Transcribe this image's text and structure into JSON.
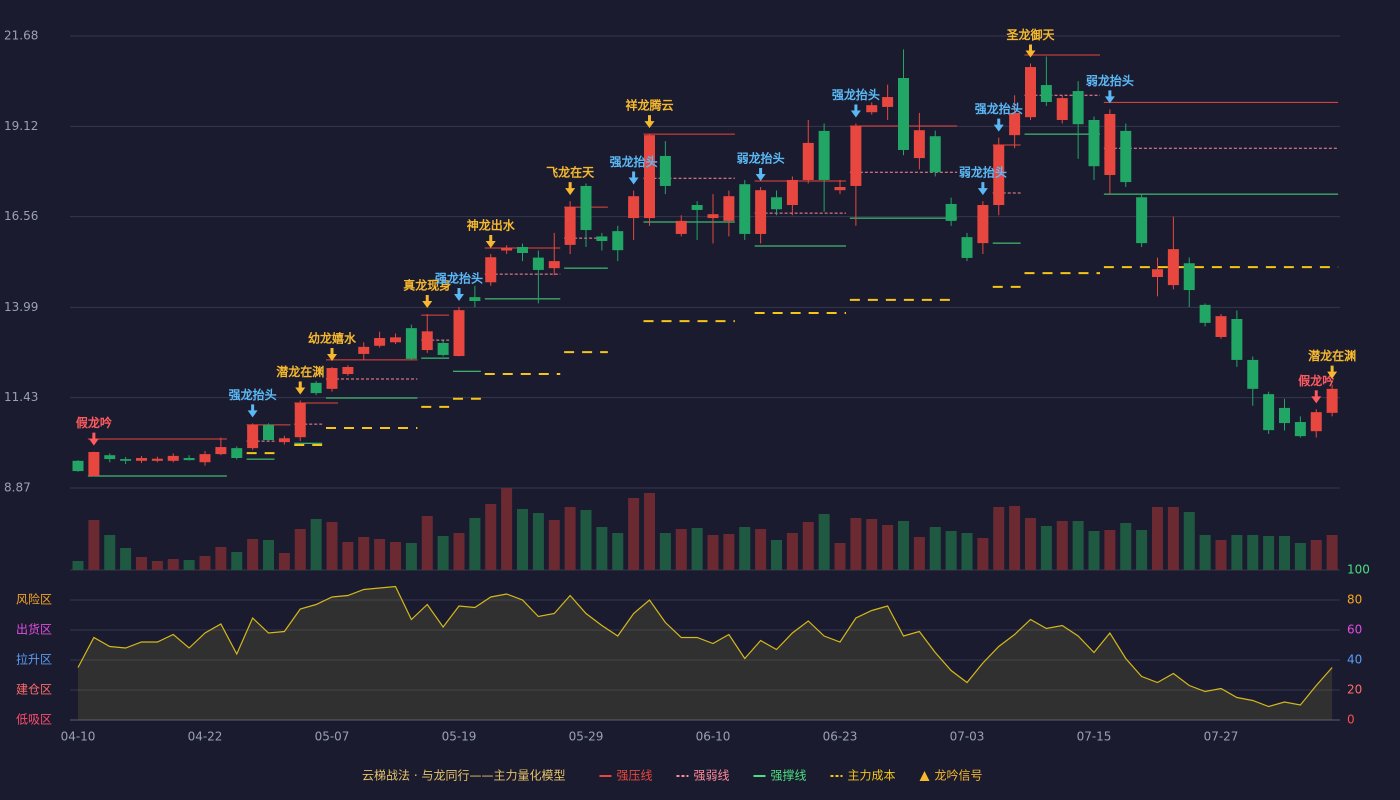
{
  "chart_data": [
    {
      "type": "candlestick",
      "categories": [
        "04-10",
        null,
        null,
        null,
        null,
        null,
        null,
        null,
        "04-22",
        null,
        null,
        null,
        null,
        null,
        null,
        null,
        "05-07",
        null,
        null,
        null,
        null,
        null,
        null,
        null,
        "05-19",
        null,
        null,
        null,
        null,
        null,
        null,
        null,
        "05-29",
        null,
        null,
        null,
        null,
        null,
        null,
        null,
        "06-10",
        null,
        null,
        null,
        null,
        null,
        null,
        null,
        "06-23",
        null,
        null,
        null,
        null,
        null,
        null,
        null,
        "07-03",
        null,
        null,
        null,
        null,
        null,
        null,
        null,
        "07-15",
        null,
        null,
        null,
        null,
        null,
        null,
        null,
        "07-27",
        null,
        null,
        null,
        null,
        null,
        null,
        null
      ],
      "open": [
        9.64,
        9.21,
        9.8,
        9.69,
        9.64,
        9.64,
        9.64,
        9.72,
        9.6,
        9.83,
        10.0,
        10.0,
        10.66,
        10.17,
        10.31,
        11.85,
        11.68,
        12.1,
        12.67,
        12.9,
        13.0,
        13.4,
        12.78,
        12.98,
        12.61,
        14.28,
        14.7,
        15.6,
        15.7,
        15.4,
        15.1,
        15.76,
        17.43,
        16.0,
        16.15,
        16.52,
        16.52,
        18.28,
        16.07,
        16.89,
        16.52,
        16.44,
        17.48,
        16.07,
        17.11,
        16.89,
        17.6,
        18.99,
        17.31,
        17.43,
        19.52,
        19.67,
        20.49,
        18.22,
        18.84,
        16.92,
        15.98,
        15.81,
        16.89,
        18.87,
        19.38,
        20.29,
        19.3,
        20.12,
        19.3,
        17.74,
        18.99,
        17.11,
        14.85,
        14.62,
        15.24,
        14.06,
        13.15,
        13.66,
        12.5,
        11.53,
        11.14,
        10.74,
        10.48,
        11.0
      ],
      "high": [
        9.66,
        9.9,
        9.85,
        9.75,
        9.78,
        9.76,
        9.85,
        9.8,
        9.92,
        10.3,
        10.05,
        10.7,
        10.7,
        10.35,
        11.35,
        11.9,
        12.3,
        12.35,
        13.0,
        13.3,
        13.25,
        13.5,
        13.8,
        13.05,
        14.0,
        14.6,
        15.5,
        15.75,
        15.8,
        15.6,
        16.1,
        17.0,
        17.5,
        16.1,
        16.3,
        17.3,
        18.9,
        18.7,
        16.6,
        17.0,
        17.2,
        17.3,
        17.6,
        17.4,
        17.3,
        17.7,
        19.3,
        19.2,
        17.6,
        19.2,
        19.8,
        20.3,
        21.3,
        19.5,
        19.0,
        17.1,
        16.1,
        17.0,
        18.8,
        20.0,
        20.9,
        21.1,
        20.0,
        20.4,
        19.4,
        19.6,
        19.2,
        17.2,
        15.4,
        16.56,
        15.4,
        14.1,
        13.8,
        13.9,
        12.6,
        11.6,
        11.4,
        10.9,
        11.1,
        11.8
      ],
      "low": [
        9.33,
        9.2,
        9.6,
        9.55,
        9.58,
        9.6,
        9.6,
        9.65,
        9.5,
        9.8,
        9.68,
        9.95,
        10.2,
        10.1,
        10.2,
        11.5,
        11.6,
        12.05,
        12.5,
        12.85,
        12.95,
        12.5,
        12.7,
        12.6,
        12.6,
        14.0,
        14.6,
        15.5,
        15.3,
        14.1,
        14.9,
        15.5,
        15.7,
        15.6,
        15.3,
        15.9,
        16.3,
        17.2,
        16.0,
        15.9,
        15.8,
        16.0,
        15.9,
        15.8,
        16.6,
        16.6,
        17.5,
        16.7,
        17.2,
        16.3,
        19.45,
        19.3,
        18.3,
        17.9,
        17.7,
        16.3,
        15.3,
        15.5,
        16.6,
        18.5,
        19.3,
        19.7,
        19.2,
        18.2,
        17.6,
        17.2,
        17.4,
        15.7,
        14.3,
        14.5,
        14.0,
        13.45,
        13.1,
        12.3,
        11.2,
        10.4,
        10.5,
        10.3,
        10.3,
        10.9
      ],
      "close": [
        9.35,
        9.89,
        9.69,
        9.64,
        9.72,
        9.7,
        9.78,
        9.66,
        9.83,
        10.03,
        9.72,
        10.66,
        10.23,
        10.28,
        11.28,
        11.56,
        12.27,
        12.3,
        12.87,
        13.12,
        13.14,
        12.53,
        13.31,
        12.64,
        13.91,
        14.17,
        15.41,
        15.67,
        15.53,
        15.05,
        15.3,
        16.83,
        16.18,
        15.87,
        15.61,
        17.14,
        18.87,
        17.43,
        16.44,
        16.75,
        16.63,
        17.14,
        16.07,
        17.31,
        16.77,
        17.6,
        18.65,
        17.6,
        17.4,
        19.13,
        19.72,
        19.95,
        18.45,
        19.01,
        17.82,
        16.44,
        15.39,
        16.89,
        18.59,
        19.5,
        20.8,
        19.81,
        19.92,
        19.18,
        17.99,
        19.47,
        17.54,
        15.81,
        15.07,
        15.64,
        14.48,
        13.55,
        13.74,
        12.5,
        11.68,
        10.51,
        10.71,
        10.34,
        11.02,
        11.68
      ],
      "up_color": "#e8473f",
      "down_color": "#21a665",
      "ylim": [
        8.87,
        21.68
      ],
      "yticks": [
        8.87,
        11.43,
        13.99,
        16.56,
        19.12,
        21.68
      ],
      "grid": true,
      "legend_title": "云梯战法 · 与龙同行——主力量化模型",
      "lines": [
        {
          "name": "强压线",
          "color": "#e8473f",
          "style": "solid",
          "segments": [
            {
              "from": 1,
              "to": 9,
              "value": 10.26
            },
            {
              "from": 11,
              "to": 13,
              "value": 10.66
            },
            {
              "from": 14,
              "to": 16,
              "value": 11.28
            },
            {
              "from": 16,
              "to": 21,
              "value": 12.5
            },
            {
              "from": 22,
              "to": 23,
              "value": 13.77
            },
            {
              "from": 26,
              "to": 30,
              "value": 15.67
            },
            {
              "from": 31,
              "to": 33,
              "value": 16.83
            },
            {
              "from": 36,
              "to": 41,
              "value": 18.9
            },
            {
              "from": 43,
              "to": 48,
              "value": 17.57
            },
            {
              "from": 49,
              "to": 55,
              "value": 19.13
            },
            {
              "from": 58,
              "to": 59,
              "value": 18.59
            },
            {
              "from": 60,
              "to": 64,
              "value": 21.14
            },
            {
              "from": 65,
              "to": 79,
              "value": 19.8
            }
          ]
        },
        {
          "name": "强弱线",
          "color": "#ff8a9a",
          "style": "dotted",
          "segments": [
            {
              "from": 11,
              "to": 12,
              "value": 10.2
            },
            {
              "from": 14,
              "to": 15,
              "value": 10.68
            },
            {
              "from": 16,
              "to": 21,
              "value": 11.96
            },
            {
              "from": 22,
              "to": 23,
              "value": 13.06
            },
            {
              "from": 26,
              "to": 30,
              "value": 14.93
            },
            {
              "from": 31,
              "to": 33,
              "value": 15.95
            },
            {
              "from": 36,
              "to": 41,
              "value": 17.65
            },
            {
              "from": 43,
              "to": 48,
              "value": 16.66
            },
            {
              "from": 49,
              "to": 55,
              "value": 17.82
            },
            {
              "from": 58,
              "to": 59,
              "value": 17.23
            },
            {
              "from": 60,
              "to": 64,
              "value": 20.0
            },
            {
              "from": 65,
              "to": 79,
              "value": 18.5
            }
          ]
        },
        {
          "name": "强撑线",
          "color": "#4ade80",
          "style": "solid",
          "segments": [
            {
              "from": 1,
              "to": 9,
              "value": 9.21
            },
            {
              "from": 11,
              "to": 12,
              "value": 9.69
            },
            {
              "from": 14,
              "to": 15,
              "value": 10.14
            },
            {
              "from": 16,
              "to": 21,
              "value": 11.42
            },
            {
              "from": 22,
              "to": 23,
              "value": 12.55
            },
            {
              "from": 24,
              "to": 25,
              "value": 12.18
            },
            {
              "from": 26,
              "to": 30,
              "value": 14.23
            },
            {
              "from": 31,
              "to": 33,
              "value": 15.1
            },
            {
              "from": 36,
              "to": 41,
              "value": 16.41
            },
            {
              "from": 43,
              "to": 48,
              "value": 15.73
            },
            {
              "from": 49,
              "to": 55,
              "value": 16.52
            },
            {
              "from": 58,
              "to": 59,
              "value": 15.81
            },
            {
              "from": 60,
              "to": 64,
              "value": 18.9
            },
            {
              "from": 65,
              "to": 79,
              "value": 17.2
            }
          ]
        },
        {
          "name": "主力成本",
          "color": "#f5c518",
          "style": "dashed",
          "segments": [
            {
              "from": 11,
              "to": 12,
              "value": 9.86
            },
            {
              "from": 14,
              "to": 15,
              "value": 10.09
            },
            {
              "from": 16,
              "to": 21,
              "value": 10.57
            },
            {
              "from": 22,
              "to": 23,
              "value": 11.17
            },
            {
              "from": 24,
              "to": 25,
              "value": 11.4
            },
            {
              "from": 26,
              "to": 30,
              "value": 12.1
            },
            {
              "from": 31,
              "to": 33,
              "value": 12.72
            },
            {
              "from": 36,
              "to": 41,
              "value": 13.6
            },
            {
              "from": 43,
              "to": 48,
              "value": 13.83
            },
            {
              "from": 49,
              "to": 55,
              "value": 14.2
            },
            {
              "from": 58,
              "to": 59,
              "value": 14.57
            },
            {
              "from": 60,
              "to": 64,
              "value": 14.96
            },
            {
              "from": 65,
              "to": 79,
              "value": 15.13
            }
          ]
        }
      ],
      "signal_name": "龙吟信号",
      "signal_color": "#f5b82e",
      "signals": [
        {
          "index": 1,
          "label": "假龙吟",
          "color": "#ff5a5f"
        },
        {
          "index": 11,
          "label": "强龙抬头",
          "color": "#5bb8f5"
        },
        {
          "index": 14,
          "label": "潜龙在渊",
          "color": "#f5b82e"
        },
        {
          "index": 16,
          "label": "幼龙嬉水",
          "color": "#f5b82e"
        },
        {
          "index": 22,
          "label": "真龙现身",
          "color": "#f5b82e"
        },
        {
          "index": 24,
          "label": "强龙抬头",
          "color": "#5bb8f5"
        },
        {
          "index": 26,
          "label": "神龙出水",
          "color": "#f5b82e"
        },
        {
          "index": 31,
          "label": "飞龙在天",
          "color": "#f5b82e"
        },
        {
          "index": 35,
          "label": "强龙抬头",
          "color": "#5bb8f5"
        },
        {
          "index": 36,
          "label": "祥龙腾云",
          "color": "#f5b82e"
        },
        {
          "index": 43,
          "label": "弱龙抬头",
          "color": "#5bb8f5"
        },
        {
          "index": 49,
          "label": "强龙抬头",
          "color": "#5bb8f5"
        },
        {
          "index": 57,
          "label": "弱龙抬头",
          "color": "#5bb8f5"
        },
        {
          "index": 58,
          "label": "强龙抬头",
          "color": "#5bb8f5"
        },
        {
          "index": 60,
          "label": "圣龙御天",
          "color": "#f5b82e"
        },
        {
          "index": 65,
          "label": "弱龙抬头",
          "color": "#5bb8f5"
        },
        {
          "index": 78,
          "label": "假龙吟",
          "color": "#ff5a5f"
        },
        {
          "index": 79,
          "label": "潜龙在渊",
          "color": "#f5b82e"
        }
      ]
    },
    {
      "type": "bar",
      "up_color": "#6b2a32",
      "down_color": "#1f5942",
      "ylim": [
        0,
        82
      ],
      "values": [
        9,
        50,
        35,
        22,
        13,
        9,
        11,
        10,
        14,
        23,
        18,
        31,
        30,
        17,
        41,
        51,
        48,
        28,
        33,
        31,
        28,
        27,
        54,
        34,
        37,
        52,
        66,
        82,
        61,
        57,
        50,
        63,
        60,
        43,
        37,
        72,
        77,
        37,
        41,
        42,
        35,
        36,
        43,
        41,
        30,
        37,
        48,
        56,
        27,
        52,
        51,
        45,
        49,
        33,
        43,
        39,
        37,
        32,
        63,
        64,
        52,
        44,
        49,
        49,
        39,
        40,
        47,
        40,
        63,
        63,
        58,
        35,
        30,
        35,
        35,
        34,
        34,
        27,
        30,
        35
      ]
    },
    {
      "type": "line",
      "color": "#d4b81c",
      "fill": "rgba(120,110,60,0.25)",
      "ylim": [
        0,
        100
      ],
      "values": [
        35,
        55,
        49,
        48,
        52,
        52,
        57,
        48,
        58,
        64,
        44,
        68,
        58,
        59,
        74,
        77,
        82,
        83,
        87,
        88,
        89,
        67,
        77,
        62,
        76,
        75,
        82,
        84,
        80,
        69,
        71,
        83,
        71,
        63,
        56,
        71,
        80,
        65,
        55,
        55,
        51,
        57,
        41,
        53,
        47,
        58,
        66,
        56,
        52,
        68,
        73,
        76,
        56,
        59,
        45,
        33,
        25,
        38,
        49,
        57,
        67,
        61,
        63,
        56,
        45,
        58,
        41,
        29,
        25,
        31,
        23,
        19,
        21,
        15,
        13,
        9,
        12,
        10,
        23,
        35
      ],
      "yticks": [
        0,
        20,
        40,
        60,
        80,
        100
      ],
      "ytick_colors": [
        "#ff4d4d",
        "#ff6b6b",
        "#5b9cf5",
        "#e04de0",
        "#f5a623",
        "#4ade80"
      ],
      "zones": [
        {
          "value": 80,
          "label": "风险区",
          "color": "#f5a623"
        },
        {
          "value": 60,
          "label": "出货区",
          "color": "#e04de0"
        },
        {
          "value": 40,
          "label": "拉升区",
          "color": "#5b9cf5"
        },
        {
          "value": 20,
          "label": "建仓区",
          "color": "#ff6b6b"
        },
        {
          "value": 0,
          "label": "低吸区",
          "color": "#ff4d6d"
        }
      ]
    }
  ]
}
